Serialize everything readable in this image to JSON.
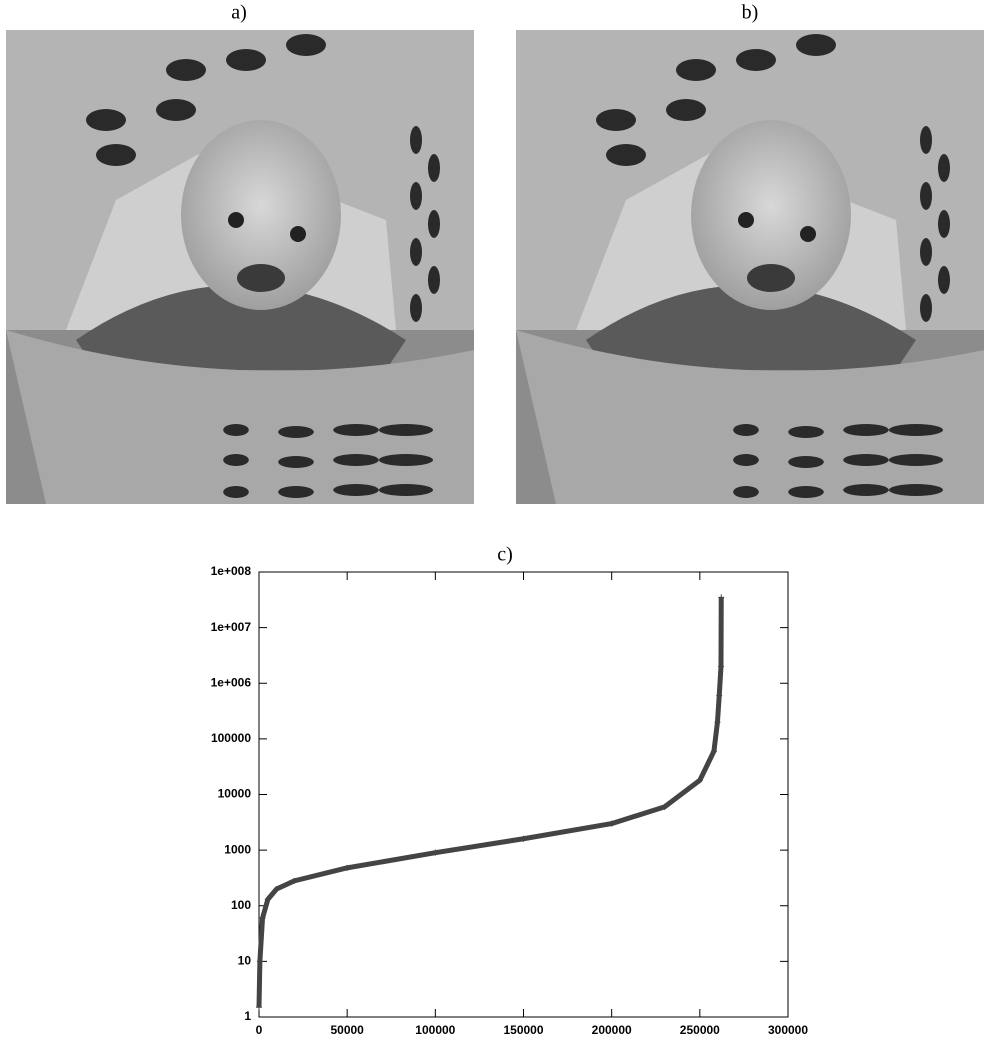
{
  "images": [
    {
      "label": "a)"
    },
    {
      "label": "b)"
    }
  ],
  "chart_data": {
    "type": "line",
    "title": "c)",
    "x": [
      0,
      500,
      2000,
      5000,
      10000,
      20000,
      50000,
      100000,
      150000,
      200000,
      230000,
      250000,
      258000,
      260000,
      261000,
      262000,
      262144
    ],
    "values": [
      1.5,
      10,
      60,
      130,
      200,
      280,
      480,
      900,
      1600,
      3000,
      6000,
      18000,
      60000,
      200000,
      600000,
      2000000,
      35000000
    ],
    "color": "#444444",
    "xlim": [
      0,
      300000
    ],
    "xticks": [
      0,
      50000,
      100000,
      150000,
      200000,
      250000,
      300000
    ],
    "ylim": [
      1,
      100000000
    ],
    "log_y": true,
    "yticks": [
      1,
      10,
      100,
      1000,
      10000,
      100000,
      {
        "value": 1000000,
        "label": "1e+006"
      },
      {
        "value": 10000000,
        "label": "1e+007"
      },
      {
        "value": 100000000,
        "label": "1e+008"
      }
    ],
    "grid": false
  }
}
